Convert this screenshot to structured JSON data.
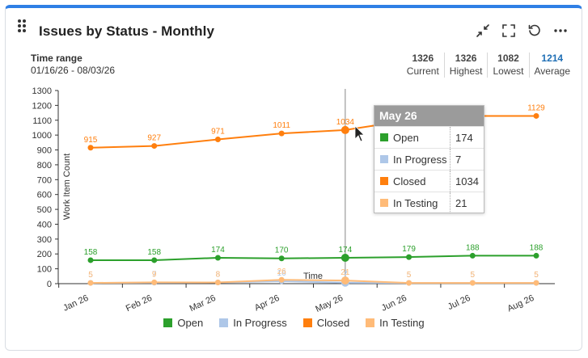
{
  "widget": {
    "title": "Issues by Status - Monthly",
    "time_range_label": "Time range",
    "time_range_value": "01/16/26 - 08/03/26"
  },
  "stats": [
    {
      "value": "1326",
      "label": "Current"
    },
    {
      "value": "1326",
      "label": "Highest"
    },
    {
      "value": "1082",
      "label": "Lowest"
    },
    {
      "value": "1214",
      "label": "Average"
    }
  ],
  "tools": [
    {
      "name": "collapse-icon"
    },
    {
      "name": "fullscreen-icon"
    },
    {
      "name": "refresh-icon"
    },
    {
      "name": "more-icon"
    }
  ],
  "colors": {
    "open": "#2ca02c",
    "in_progress": "#aec7e8",
    "closed": "#ff7f0e",
    "in_testing": "#ffbb78",
    "accent": "#2f7fe5"
  },
  "tooltip": {
    "title": "May 26",
    "rows": [
      {
        "label": "Open",
        "value": "174",
        "color": "#2ca02c"
      },
      {
        "label": "In Progress",
        "value": "7",
        "color": "#aec7e8"
      },
      {
        "label": "Closed",
        "value": "1034",
        "color": "#ff7f0e"
      },
      {
        "label": "In Testing",
        "value": "21",
        "color": "#ffbb78"
      }
    ]
  },
  "legend": [
    {
      "label": "Open",
      "color": "#2ca02c"
    },
    {
      "label": "In Progress",
      "color": "#aec7e8"
    },
    {
      "label": "Closed",
      "color": "#ff7f0e"
    },
    {
      "label": "In Testing",
      "color": "#ffbb78"
    }
  ],
  "chart_data": {
    "type": "line",
    "xlabel": "Time",
    "ylabel": "Work Item Count",
    "ylim": [
      0,
      1300
    ],
    "yticks": [
      0,
      100,
      200,
      300,
      400,
      500,
      600,
      700,
      800,
      900,
      1000,
      1100,
      1200,
      1300
    ],
    "categories": [
      "Jan 26",
      "Feb 26",
      "Mar 26",
      "Apr 26",
      "May 26",
      "Jun 26",
      "Jul 26",
      "Aug 26"
    ],
    "grid": false,
    "legend_position": "bottom",
    "hover_category": "May 26",
    "series": [
      {
        "name": "Open",
        "color": "#2ca02c",
        "values": [
          158,
          158,
          174,
          170,
          174,
          179,
          188,
          188
        ],
        "labels": [
          "158",
          "158",
          "174",
          "170",
          "174",
          "179",
          "188",
          "188"
        ]
      },
      {
        "name": "In Progress",
        "color": "#aec7e8",
        "values": [
          5,
          7,
          8,
          16,
          7,
          5,
          5,
          5
        ],
        "labels": [
          "5",
          "7",
          "8",
          "16",
          "7",
          "5",
          "5",
          "5"
        ]
      },
      {
        "name": "Closed",
        "color": "#ff7f0e",
        "values": [
          915,
          927,
          971,
          1011,
          1034,
          1100,
          1129,
          1129
        ],
        "labels": [
          "915",
          "927",
          "971",
          "1011",
          "1034",
          "",
          "",
          "1129"
        ]
      },
      {
        "name": "In Testing",
        "color": "#ffbb78",
        "values": [
          5,
          9,
          8,
          26,
          21,
          5,
          5,
          5
        ],
        "labels": [
          "5",
          "9",
          "8",
          "26",
          "21",
          "5",
          "5",
          "5"
        ]
      }
    ]
  }
}
